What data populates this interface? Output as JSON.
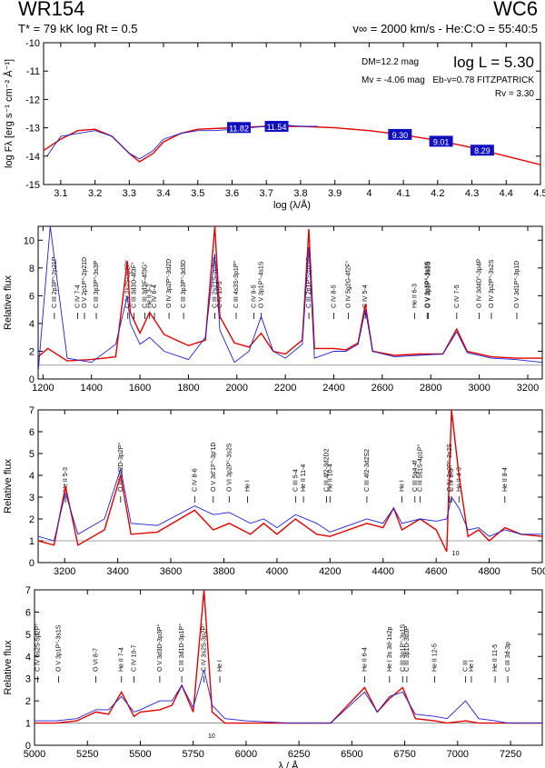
{
  "header": {
    "star": "WR154",
    "spectral_type": "WC6",
    "left_params": "T* = 79 kK   log Rt = 0.5",
    "right_params": "v∞ = 2000 km/s - He:C:O = 55:40:5"
  },
  "info": {
    "dm": "DM=12.2 mag",
    "mv": "Mv = -4.06 mag",
    "logL": "log L = 5.30",
    "ebv": "Eb-v=0.78 FITZPATRICK",
    "rv": "Rv = 3.30"
  },
  "colors": {
    "model": "#e00000",
    "observed": "#2020d0",
    "box": "#1010c0",
    "reference": "#808080"
  },
  "chart_data": [
    {
      "type": "line",
      "name": "SED",
      "xlabel": "log (λ/Å)",
      "ylabel": "log Fλ [erg s⁻¹ cm⁻² Å⁻¹]",
      "xlim": [
        3.05,
        4.5
      ],
      "ylim": [
        -15,
        -10
      ],
      "xticks": [
        3.1,
        3.2,
        3.3,
        3.4,
        3.5,
        3.6,
        3.7,
        3.8,
        3.9,
        4.0,
        4.1,
        4.2,
        4.3,
        4.4,
        4.5
      ],
      "yticks": [
        -15,
        -14,
        -13,
        -12,
        -11,
        -10
      ],
      "series": [
        {
          "role": "model",
          "x": [
            3.05,
            3.1,
            3.15,
            3.2,
            3.25,
            3.3,
            3.33,
            3.37,
            3.4,
            3.45,
            3.5,
            3.6,
            3.7,
            3.8,
            3.9,
            4.0,
            4.1,
            4.2,
            4.3,
            4.4,
            4.5
          ],
          "y": [
            -13.8,
            -13.4,
            -13.1,
            -13.05,
            -13.3,
            -13.9,
            -14.2,
            -13.9,
            -13.5,
            -13.2,
            -13.05,
            -13.0,
            -12.95,
            -12.95,
            -13.0,
            -13.1,
            -13.25,
            -13.45,
            -13.7,
            -14.0,
            -14.3
          ]
        },
        {
          "role": "observed",
          "x": [
            3.06,
            3.1,
            3.15,
            3.2,
            3.25,
            3.3,
            3.33,
            3.37,
            3.4,
            3.45,
            3.5,
            3.55,
            3.6,
            3.65,
            3.7,
            3.75,
            3.8,
            3.85
          ],
          "y": [
            -14.0,
            -13.3,
            -13.2,
            -13.1,
            -13.3,
            -13.9,
            -14.1,
            -13.8,
            -13.4,
            -13.2,
            -13.1,
            -13.1,
            -13.05,
            -13.0,
            -12.95,
            -12.9,
            -12.95,
            -12.95
          ]
        }
      ],
      "photometry": [
        {
          "x": 3.62,
          "value": "11.82"
        },
        {
          "x": 3.73,
          "value": "11.54"
        },
        {
          "x": 4.09,
          "value": "9.30"
        },
        {
          "x": 4.21,
          "value": "9.01"
        },
        {
          "x": 4.33,
          "value": "8.29"
        }
      ]
    },
    {
      "type": "line",
      "name": "UV",
      "xlabel": "",
      "ylabel": "Relative flux",
      "xlim": [
        1180,
        3260
      ],
      "ylim": [
        0,
        11
      ],
      "xticks": [
        1200,
        1400,
        1600,
        1800,
        2000,
        2200,
        2400,
        2600,
        2800,
        3000,
        3200
      ],
      "yticks": [
        0,
        2,
        4,
        6,
        8,
        10
      ],
      "lines": [
        {
          "x": 1247,
          "label": "C III 2p3P°-2p21P"
        },
        {
          "x": 1343,
          "label": "C IV 7-4"
        },
        {
          "x": 1371,
          "label": "O V 2p1P°-2p21D"
        },
        {
          "x": 1420,
          "label": "C III 3p3P°-3s3P"
        },
        {
          "x": 1550,
          "label": "C IV 2s2S-2p2P°"
        },
        {
          "x": 1576,
          "label": "C III 3d3D-4f3F°"
        },
        {
          "x": 1620,
          "label": "C III 3d3F-4f3G°"
        },
        {
          "x": 1640,
          "label": "He II 3-2"
        },
        {
          "x": 1660,
          "label": "C IV 6-4"
        },
        {
          "x": 1720,
          "label": "O IV 3p2P°-3d2D"
        },
        {
          "x": 1780,
          "label": "C III 3p3P°-3d3D"
        },
        {
          "x": 1909,
          "label": "C III 2s21S-2p3P°"
        },
        {
          "x": 1930,
          "label": "C IV 10-5"
        },
        {
          "x": 1997,
          "label": "C III 4s3S-3p1P°"
        },
        {
          "x": 2070,
          "label": "C IV 9-5"
        },
        {
          "x": 2100,
          "label": "O V 3p1P°-4s1S"
        },
        {
          "x": 2297,
          "label": "C III 2p1P°-2p21D"
        },
        {
          "x": 2400,
          "label": "C IV 8-5"
        },
        {
          "x": 2530,
          "label": "C IV 5-4"
        },
        {
          "x": 2460,
          "label": "O IV 5g2G-4f2F°"
        },
        {
          "x": 2733,
          "label": "He II 6-3"
        },
        {
          "x": 2785,
          "label": "O V 3p3P°-3s3S"
        },
        {
          "x": 2790,
          "label": "O V 3p1P°-3s1S"
        },
        {
          "x": 2907,
          "label": "C IV 7-5"
        },
        {
          "x": 3000,
          "label": "O IV 3d4D°-3p4P"
        },
        {
          "x": 3050,
          "label": "O IV 3p2P°-3s2S"
        },
        {
          "x": 3155,
          "label": "O V 3d1P°-3p1D"
        }
      ],
      "series": [
        {
          "role": "model",
          "x": [
            1180,
            1220,
            1300,
            1400,
            1500,
            1548,
            1560,
            1600,
            1640,
            1700,
            1800,
            1870,
            1909,
            1930,
            1990,
            2050,
            2100,
            2150,
            2200,
            2270,
            2297,
            2320,
            2400,
            2450,
            2500,
            2530,
            2560,
            2650,
            2750,
            2850,
            2907,
            2950,
            3050,
            3150,
            3260
          ],
          "y": [
            1.6,
            2.2,
            1.3,
            1.4,
            1.6,
            8.5,
            4.8,
            3.3,
            4.8,
            3.2,
            2.4,
            2.8,
            11,
            4.5,
            2.6,
            2.3,
            3.3,
            2.0,
            1.8,
            2.8,
            10.8,
            2.2,
            2.2,
            2.1,
            2.6,
            5.4,
            2.0,
            1.7,
            1.8,
            1.8,
            3.6,
            2.0,
            1.6,
            1.5,
            1.5
          ]
        },
        {
          "role": "observed",
          "x": [
            1180,
            1230,
            1300,
            1400,
            1500,
            1548,
            1560,
            1600,
            1640,
            1700,
            1800,
            1870,
            1909,
            1930,
            1990,
            2050,
            2100,
            2150,
            2200,
            2270,
            2297,
            2320,
            2400,
            2450,
            2500,
            2530,
            2560,
            2650,
            2750,
            2850,
            2907,
            2950,
            3050,
            3150,
            3260
          ],
          "y": [
            0.5,
            11,
            1.5,
            1.2,
            2.5,
            6.0,
            4.0,
            2.5,
            3.0,
            2.0,
            1.4,
            3.0,
            9.0,
            3.5,
            1.2,
            2.0,
            4.5,
            2.0,
            1.5,
            2.5,
            9.5,
            1.5,
            2.0,
            2.0,
            2.5,
            5.0,
            2.0,
            1.6,
            1.7,
            1.8,
            3.4,
            1.9,
            1.5,
            1.4,
            1.2
          ]
        }
      ]
    },
    {
      "type": "line",
      "name": "Optical-blue",
      "xlabel": "",
      "ylabel": "Relative flux",
      "xlim": [
        3100,
        5000
      ],
      "ylim": [
        0,
        7
      ],
      "xticks": [
        3200,
        3400,
        3600,
        3800,
        4000,
        4200,
        4400,
        4600,
        4800,
        5000
      ],
      "yticks": [
        0,
        1,
        2,
        3,
        4,
        5,
        6,
        7
      ],
      "lines": [
        {
          "x": 3203,
          "label": "He II 5-3"
        },
        {
          "x": 3411,
          "label": "O IV 3d2D-3p2P°"
        },
        {
          "x": 3690,
          "label": "C IV 8-6"
        },
        {
          "x": 3760,
          "label": "O V 3d'1F°-3p'1D"
        },
        {
          "x": 3820,
          "label": "O VI 3p2P°-3s2S"
        },
        {
          "x": 3889,
          "label": "He I"
        },
        {
          "x": 4070,
          "label": "C III 5-4"
        },
        {
          "x": 4100,
          "label": "He II 11-4"
        },
        {
          "x": 4187,
          "label": "C III 4f2-3d2D2"
        },
        {
          "x": 4200,
          "label": "He II 10-4"
        },
        {
          "x": 4339,
          "label": "C III 4f2-3d2S2"
        },
        {
          "x": 4471,
          "label": "He I"
        },
        {
          "x": 4520,
          "label": "C III 5g4-4f"
        },
        {
          "x": 4540,
          "label": "C III 5s1S-4p1P°"
        },
        {
          "x": 4650,
          "label": "C IV 3p2P°-3s2S"
        },
        {
          "x": 4658,
          "label": "C IV 6-5"
        },
        {
          "x": 4686,
          "label": "He II 4-3"
        },
        {
          "x": 4859,
          "label": "He II 8-4"
        }
      ],
      "series": [
        {
          "role": "model",
          "x": [
            3100,
            3160,
            3203,
            3250,
            3350,
            3411,
            3450,
            3550,
            3690,
            3760,
            3820,
            3900,
            3950,
            4000,
            4070,
            4150,
            4200,
            4339,
            4400,
            4440,
            4471,
            4540,
            4600,
            4640,
            4658,
            4686,
            4720,
            4760,
            4800,
            4859,
            4920,
            5000
          ],
          "y": [
            1.0,
            0.8,
            3.5,
            0.8,
            1.5,
            4.0,
            1.3,
            1.4,
            2.4,
            1.5,
            1.8,
            1.3,
            1.8,
            1.3,
            2.0,
            1.3,
            1.2,
            1.8,
            1.6,
            2.5,
            1.5,
            2.0,
            1.5,
            0.5,
            7.0,
            4.0,
            1.2,
            1.5,
            1.0,
            1.6,
            1.3,
            1.2
          ]
        },
        {
          "role": "observed",
          "x": [
            3100,
            3160,
            3203,
            3250,
            3350,
            3411,
            3450,
            3550,
            3690,
            3760,
            3820,
            3900,
            3950,
            4000,
            4070,
            4150,
            4200,
            4339,
            4400,
            4440,
            4471,
            4540,
            4600,
            4640,
            4658,
            4686,
            4720,
            4760,
            4800,
            4859,
            4920,
            5000
          ],
          "y": [
            1.2,
            1.0,
            3.2,
            1.3,
            2.0,
            4.3,
            1.8,
            1.7,
            2.6,
            2.2,
            2.3,
            1.8,
            2.0,
            1.6,
            2.2,
            1.8,
            1.4,
            2.0,
            1.8,
            2.5,
            1.8,
            2.0,
            1.9,
            2.0,
            3.0,
            2.5,
            1.5,
            1.6,
            1.2,
            1.5,
            1.3,
            1.3
          ]
        }
      ],
      "inset_label": "10"
    },
    {
      "type": "line",
      "name": "Optical-red",
      "xlabel": "λ / Å",
      "ylabel": "Relative flux",
      "xlim": [
        5000,
        7400
      ],
      "ylim": [
        0,
        7
      ],
      "xticks": [
        5000,
        5250,
        5500,
        5750,
        6000,
        6250,
        6500,
        6750,
        7000,
        7250
      ],
      "yticks": [
        0,
        1,
        2,
        3,
        4,
        5,
        6,
        7
      ],
      "lines": [
        {
          "x": 5015,
          "label": "C IV 6s2S-5p2P°"
        },
        {
          "x": 5114,
          "label": "O V 3p1P°-3s1S"
        },
        {
          "x": 5290,
          "label": "O VI 8-7"
        },
        {
          "x": 5411,
          "label": "He II 7-4"
        },
        {
          "x": 5470,
          "label": "C IV 10-7"
        },
        {
          "x": 5592,
          "label": "O V 3d3D-3p3P°"
        },
        {
          "x": 5696,
          "label": "C III 3d1D-3p1P°"
        },
        {
          "x": 5801,
          "label": "C IV 3s2S-3p2P°"
        },
        {
          "x": 5876,
          "label": "He I"
        },
        {
          "x": 6560,
          "label": "He II 6-4"
        },
        {
          "x": 6678,
          "label": "He I 3s 3d-1s2p"
        },
        {
          "x": 6740,
          "label": "C III 3p1P°-3s1S"
        },
        {
          "x": 6760,
          "label": "C III 3p1D-3d3P"
        },
        {
          "x": 6891,
          "label": "He II 12-5"
        },
        {
          "x": 7037,
          "label": "C III"
        },
        {
          "x": 7065,
          "label": "He I"
        },
        {
          "x": 7177,
          "label": "He II 11-5"
        },
        {
          "x": 7237,
          "label": "C III 3d-3p"
        }
      ],
      "series": [
        {
          "role": "model",
          "x": [
            5000,
            5100,
            5200,
            5290,
            5350,
            5411,
            5470,
            5500,
            5592,
            5650,
            5696,
            5750,
            5801,
            5840,
            5900,
            6000,
            6200,
            6400,
            6560,
            6620,
            6678,
            6740,
            6800,
            6891,
            6950,
            7037,
            7100,
            7177,
            7237,
            7300,
            7400
          ],
          "y": [
            1.0,
            1.0,
            1.1,
            1.5,
            1.4,
            2.4,
            1.3,
            1.5,
            1.6,
            1.8,
            2.7,
            1.5,
            7.0,
            1.5,
            1.0,
            1.0,
            1.0,
            1.0,
            2.6,
            1.5,
            2.1,
            2.6,
            1.2,
            1.1,
            1.0,
            1.1,
            1.0,
            1.0,
            1.0,
            1.0,
            1.0
          ]
        },
        {
          "role": "observed",
          "x": [
            5000,
            5100,
            5200,
            5290,
            5350,
            5411,
            5470,
            5500,
            5592,
            5650,
            5696,
            5750,
            5801,
            5840,
            5900,
            6000,
            6200,
            6400,
            6560,
            6620,
            6678,
            6740,
            6800,
            6891,
            6950,
            7037,
            7100,
            7177,
            7237,
            7300,
            7400
          ],
          "y": [
            1.1,
            1.1,
            1.2,
            1.6,
            1.6,
            2.2,
            1.5,
            1.6,
            2.0,
            2.0,
            2.7,
            1.7,
            3.4,
            1.8,
            1.2,
            1.1,
            1.0,
            1.0,
            2.4,
            1.5,
            2.2,
            2.4,
            1.4,
            1.3,
            1.2,
            2.0,
            1.2,
            1.1,
            1.0,
            1.0,
            1.0
          ]
        }
      ],
      "inset_label": "10"
    }
  ]
}
